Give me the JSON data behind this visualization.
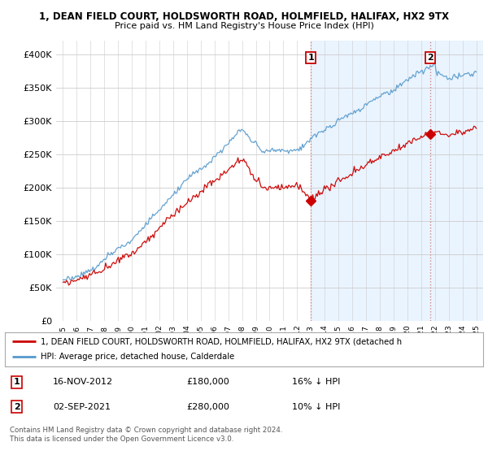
{
  "title_line1": "1, DEAN FIELD COURT, HOLDSWORTH ROAD, HOLMFIELD, HALIFAX, HX2 9TX",
  "title_line2": "Price paid vs. HM Land Registry's House Price Index (HPI)",
  "ylabel_ticks": [
    "£0",
    "£50K",
    "£100K",
    "£150K",
    "£200K",
    "£250K",
    "£300K",
    "£350K",
    "£400K"
  ],
  "ytick_values": [
    0,
    50000,
    100000,
    150000,
    200000,
    250000,
    300000,
    350000,
    400000
  ],
  "ylim": [
    0,
    420000
  ],
  "hpi_color": "#5599cc",
  "price_color": "#cc0000",
  "marker1_year": 2013.0,
  "marker2_year": 2021.67,
  "marker1_price": 180000,
  "marker2_price": 280000,
  "legend_line1": "1, DEAN FIELD COURT, HOLDSWORTH ROAD, HOLMFIELD, HALIFAX, HX2 9TX (detached h",
  "legend_line2": "HPI: Average price, detached house, Calderdale",
  "footnote": "Contains HM Land Registry data © Crown copyright and database right 2024.\nThis data is licensed under the Open Government Licence v3.0.",
  "xlim_start": 1994.5,
  "xlim_end": 2025.5,
  "background_color": "#ffffff",
  "shade_color": "#ddeeff",
  "shade_alpha": 0.6,
  "grid_color": "#cccccc",
  "dotted_line_color": "#cc8888"
}
